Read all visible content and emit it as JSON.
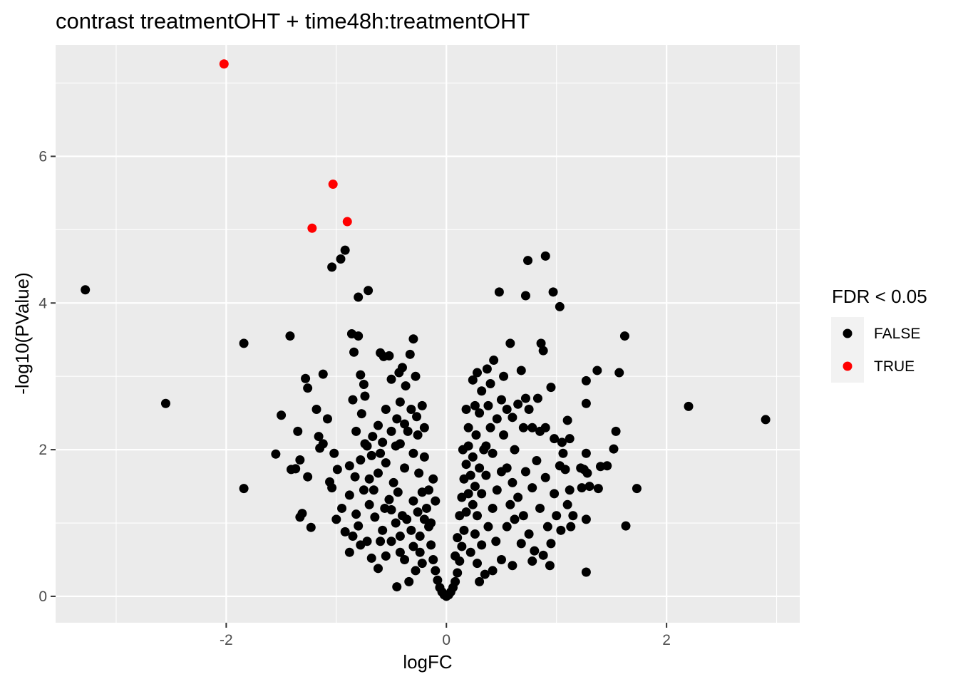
{
  "chart_data": {
    "type": "scatter",
    "title": "contrast treatmentOHT + time48h:treatmentOHT",
    "xlabel": "logFC",
    "ylabel": "-log10(PValue)",
    "xlim": [
      -3.55,
      3.21
    ],
    "ylim": [
      -0.36,
      7.52
    ],
    "x_ticks": [
      -2,
      0,
      2
    ],
    "y_ticks": [
      0,
      2,
      4,
      6
    ],
    "x_tick_labels": [
      "-2",
      "0",
      "2"
    ],
    "y_tick_labels": [
      "0",
      "2",
      "4",
      "6"
    ],
    "grid": true,
    "legend": {
      "title": "FDR < 0.05",
      "position": "right",
      "entries": [
        {
          "label": "FALSE",
          "color": "#000000"
        },
        {
          "label": "TRUE",
          "color": "#ff0000"
        }
      ]
    },
    "series": [
      {
        "name": "TRUE",
        "color": "#ff0000",
        "points": [
          [
            -2.02,
            7.26
          ],
          [
            -1.03,
            5.62
          ],
          [
            -0.9,
            5.11
          ],
          [
            -1.22,
            5.02
          ]
        ]
      },
      {
        "name": "FALSE",
        "color": "#000000",
        "points": [
          [
            -3.28,
            4.18
          ],
          [
            -2.55,
            2.63
          ],
          [
            -1.84,
            3.45
          ],
          [
            -1.84,
            1.47
          ],
          [
            -1.55,
            1.94
          ],
          [
            -1.5,
            2.47
          ],
          [
            -1.41,
            1.73
          ],
          [
            -1.37,
            1.74
          ],
          [
            -1.42,
            3.55
          ],
          [
            -1.35,
            2.25
          ],
          [
            -1.33,
            1.86
          ],
          [
            -1.31,
            1.13
          ],
          [
            -1.33,
            1.08
          ],
          [
            -1.28,
            2.97
          ],
          [
            -1.26,
            2.84
          ],
          [
            -1.26,
            1.63
          ],
          [
            -1.23,
            0.94
          ],
          [
            -1.18,
            2.55
          ],
          [
            -1.16,
            2.18
          ],
          [
            -1.12,
            3.03
          ],
          [
            -1.12,
            2.08
          ],
          [
            -1.08,
            2.42
          ],
          [
            -1.06,
            1.56
          ],
          [
            -1.04,
            1.48
          ],
          [
            -1.02,
            1.95
          ],
          [
            -0.99,
            1.73
          ],
          [
            -1.04,
            4.49
          ],
          [
            -0.96,
            4.6
          ],
          [
            -0.92,
            4.72
          ],
          [
            -0.86,
            3.58
          ],
          [
            -0.85,
            2.68
          ],
          [
            -0.84,
            3.33
          ],
          [
            -0.8,
            4.08
          ],
          [
            -0.77,
            2.49
          ],
          [
            -0.74,
            2.73
          ],
          [
            -0.71,
            4.17
          ],
          [
            -0.8,
            3.55
          ],
          [
            -0.78,
            3.02
          ],
          [
            -0.75,
            2.89
          ],
          [
            -0.82,
            2.25
          ],
          [
            -0.78,
            1.86
          ],
          [
            -0.74,
            2.08
          ],
          [
            -0.88,
            1.38
          ],
          [
            -0.82,
            1.12
          ],
          [
            -0.8,
            0.96
          ],
          [
            -0.85,
            0.82
          ],
          [
            -0.78,
            0.7
          ],
          [
            -0.88,
            0.6
          ],
          [
            -0.6,
            3.32
          ],
          [
            -0.57,
            3.27
          ],
          [
            -0.52,
            3.28
          ],
          [
            -0.5,
            2.96
          ],
          [
            -0.43,
            3.05
          ],
          [
            -0.4,
            3.12
          ],
          [
            -0.33,
            3.3
          ],
          [
            -0.3,
            3.51
          ],
          [
            -0.28,
            3.0
          ],
          [
            -0.37,
            2.87
          ],
          [
            -0.42,
            2.65
          ],
          [
            -0.55,
            2.55
          ],
          [
            -0.62,
            2.33
          ],
          [
            -0.67,
            2.18
          ],
          [
            -0.58,
            2.1
          ],
          [
            -0.45,
            2.42
          ],
          [
            -0.22,
            2.6
          ],
          [
            -0.27,
            2.45
          ],
          [
            -0.95,
            1.2
          ],
          [
            -1.0,
            1.05
          ],
          [
            -0.92,
            0.88
          ],
          [
            -0.83,
            1.63
          ],
          [
            -0.88,
            1.78
          ],
          [
            -1.15,
            2.02
          ],
          [
            -0.45,
            0.13
          ],
          [
            -0.62,
            0.38
          ],
          [
            -0.55,
            0.55
          ],
          [
            -0.68,
            0.52
          ],
          [
            -0.72,
            0.75
          ],
          [
            -0.58,
            0.9
          ],
          [
            -0.65,
            1.08
          ],
          [
            -0.7,
            1.25
          ],
          [
            -0.52,
            1.32
          ],
          [
            -0.48,
            1.55
          ],
          [
            -0.62,
            1.68
          ],
          [
            -0.55,
            1.82
          ],
          [
            -0.42,
            2.08
          ],
          [
            -0.35,
            2.25
          ],
          [
            -0.3,
            1.95
          ],
          [
            -0.38,
            1.75
          ],
          [
            -0.44,
            1.42
          ],
          [
            -0.5,
            1.18
          ],
          [
            -0.36,
            1.05
          ],
          [
            -0.42,
            0.82
          ],
          [
            -0.3,
            0.68
          ],
          [
            -0.38,
            0.5
          ],
          [
            -0.28,
            0.35
          ],
          [
            -0.34,
            0.2
          ],
          [
            -0.22,
            0.45
          ],
          [
            -0.24,
            0.82
          ],
          [
            -0.26,
            1.15
          ],
          [
            -0.22,
            1.42
          ],
          [
            -0.25,
            1.68
          ],
          [
            -0.2,
            1.9
          ],
          [
            -0.18,
            1.2
          ],
          [
            -0.16,
            0.95
          ],
          [
            -0.14,
            0.7
          ],
          [
            -0.12,
            0.5
          ],
          [
            -0.1,
            0.35
          ],
          [
            -0.08,
            0.22
          ],
          [
            -0.06,
            0.12
          ],
          [
            -0.04,
            0.06
          ],
          [
            -0.02,
            0.02
          ],
          [
            0.0,
            0.0
          ],
          [
            -0.3,
            1.3
          ],
          [
            -0.4,
            1.1
          ],
          [
            0.02,
            0.02
          ],
          [
            0.04,
            0.06
          ],
          [
            0.06,
            0.12
          ],
          [
            0.08,
            0.2
          ],
          [
            0.1,
            0.32
          ],
          [
            0.12,
            0.48
          ],
          [
            0.14,
            0.68
          ],
          [
            0.16,
            0.9
          ],
          [
            0.18,
            1.15
          ],
          [
            0.2,
            1.4
          ],
          [
            0.22,
            1.65
          ],
          [
            0.24,
            1.9
          ],
          [
            0.27,
            2.2
          ],
          [
            0.3,
            2.5
          ],
          [
            0.32,
            2.8
          ],
          [
            0.24,
            2.95
          ],
          [
            0.28,
            3.05
          ],
          [
            0.37,
            3.1
          ],
          [
            0.43,
            3.22
          ],
          [
            0.4,
            2.9
          ],
          [
            0.52,
            3.0
          ],
          [
            0.5,
            2.68
          ],
          [
            0.46,
            2.42
          ],
          [
            0.38,
            2.6
          ],
          [
            0.55,
            2.55
          ],
          [
            0.6,
            2.44
          ],
          [
            0.65,
            2.62
          ],
          [
            0.48,
            4.15
          ],
          [
            0.58,
            3.45
          ],
          [
            0.68,
            3.08
          ],
          [
            0.72,
            2.7
          ],
          [
            0.75,
            2.55
          ],
          [
            0.83,
            2.7
          ],
          [
            0.86,
            3.45
          ],
          [
            0.88,
            3.35
          ],
          [
            0.9,
            2.3
          ],
          [
            0.95,
            2.85
          ],
          [
            0.72,
            4.1
          ],
          [
            0.74,
            4.58
          ],
          [
            0.9,
            4.64
          ],
          [
            0.97,
            4.15
          ],
          [
            1.03,
            3.95
          ],
          [
            0.7,
            2.3
          ],
          [
            0.78,
            2.3
          ],
          [
            0.85,
            2.25
          ],
          [
            0.98,
            2.15
          ],
          [
            1.05,
            2.1
          ],
          [
            1.1,
            2.4
          ],
          [
            1.12,
            2.15
          ],
          [
            1.06,
            1.95
          ],
          [
            1.03,
            1.78
          ],
          [
            1.08,
            1.73
          ],
          [
            1.12,
            1.45
          ],
          [
            1.1,
            1.25
          ],
          [
            1.15,
            1.1
          ],
          [
            1.13,
            0.95
          ],
          [
            1.27,
            2.94
          ],
          [
            1.27,
            2.63
          ],
          [
            1.27,
            1.95
          ],
          [
            1.25,
            1.73
          ],
          [
            1.22,
            1.75
          ],
          [
            1.23,
            1.48
          ],
          [
            1.28,
            1.68
          ],
          [
            1.3,
            1.5
          ],
          [
            1.27,
            1.05
          ],
          [
            1.27,
            0.33
          ],
          [
            1.37,
            3.08
          ],
          [
            1.4,
            1.77
          ],
          [
            1.38,
            1.47
          ],
          [
            1.46,
            1.78
          ],
          [
            1.52,
            2.01
          ],
          [
            1.54,
            2.25
          ],
          [
            1.57,
            3.05
          ],
          [
            1.62,
            3.55
          ],
          [
            1.63,
            0.96
          ],
          [
            1.73,
            1.47
          ],
          [
            2.2,
            2.59
          ],
          [
            2.9,
            2.41
          ],
          [
            0.55,
            1.75
          ],
          [
            0.6,
            1.55
          ],
          [
            0.65,
            1.35
          ],
          [
            0.7,
            1.1
          ],
          [
            0.75,
            0.85
          ],
          [
            0.8,
            0.62
          ],
          [
            0.88,
            0.56
          ],
          [
            0.95,
            0.72
          ],
          [
            0.92,
            0.95
          ],
          [
            0.85,
            1.2
          ],
          [
            0.78,
            1.48
          ],
          [
            0.72,
            1.7
          ],
          [
            0.82,
            1.85
          ],
          [
            0.9,
            1.62
          ],
          [
            0.98,
            1.4
          ],
          [
            1.0,
            1.1
          ],
          [
            1.04,
            0.9
          ],
          [
            0.94,
            0.42
          ],
          [
            0.78,
            0.48
          ],
          [
            0.6,
            0.42
          ],
          [
            0.5,
            0.5
          ],
          [
            0.42,
            0.35
          ],
          [
            0.35,
            0.3
          ],
          [
            0.3,
            0.2
          ],
          [
            0.28,
            0.45
          ],
          [
            0.32,
            0.7
          ],
          [
            0.38,
            0.95
          ],
          [
            0.42,
            1.2
          ],
          [
            0.46,
            1.45
          ],
          [
            0.5,
            1.7
          ],
          [
            0.42,
            1.95
          ],
          [
            0.36,
            1.65
          ],
          [
            0.32,
            1.4
          ],
          [
            0.28,
            1.1
          ],
          [
            0.26,
            0.85
          ],
          [
            0.22,
            0.6
          ],
          [
            0.45,
            0.75
          ],
          [
            0.55,
            0.95
          ],
          [
            0.62,
            1.05
          ],
          [
            0.68,
            0.72
          ],
          [
            0.58,
            1.25
          ],
          [
            0.52,
            2.2
          ],
          [
            0.18,
            2.55
          ],
          [
            0.2,
            2.3
          ],
          [
            0.15,
            2.0
          ],
          [
            0.36,
            2.05
          ],
          [
            0.4,
            2.3
          ],
          [
            0.62,
            2.0
          ],
          [
            -0.12,
            1.6
          ],
          [
            -0.1,
            1.3
          ],
          [
            -0.14,
            1.0
          ],
          [
            -0.16,
            1.45
          ],
          [
            -0.2,
            1.05
          ],
          [
            -0.24,
            0.6
          ],
          [
            -0.32,
            0.9
          ],
          [
            -0.46,
            1.0
          ],
          [
            -0.56,
            1.2
          ],
          [
            -0.6,
            0.75
          ],
          [
            -0.5,
            0.75
          ],
          [
            -0.42,
            0.6
          ],
          [
            -0.66,
            1.45
          ],
          [
            -0.7,
            1.6
          ],
          [
            -0.75,
            1.45
          ],
          [
            -0.68,
            1.92
          ],
          [
            -0.72,
            2.05
          ],
          [
            -0.6,
            1.95
          ],
          [
            -0.5,
            2.25
          ],
          [
            -0.46,
            2.05
          ],
          [
            -0.38,
            2.35
          ],
          [
            -0.32,
            2.55
          ],
          [
            -0.26,
            2.2
          ],
          [
            -0.2,
            2.3
          ],
          [
            0.1,
            0.8
          ],
          [
            0.12,
            1.1
          ],
          [
            0.14,
            1.35
          ],
          [
            0.16,
            1.6
          ],
          [
            0.18,
            1.8
          ],
          [
            0.2,
            2.05
          ],
          [
            0.08,
            0.55
          ],
          [
            0.24,
            1.25
          ],
          [
            0.26,
            1.5
          ],
          [
            0.3,
            1.75
          ],
          [
            0.34,
            2.0
          ],
          [
            0.26,
            2.6
          ]
        ]
      }
    ]
  }
}
